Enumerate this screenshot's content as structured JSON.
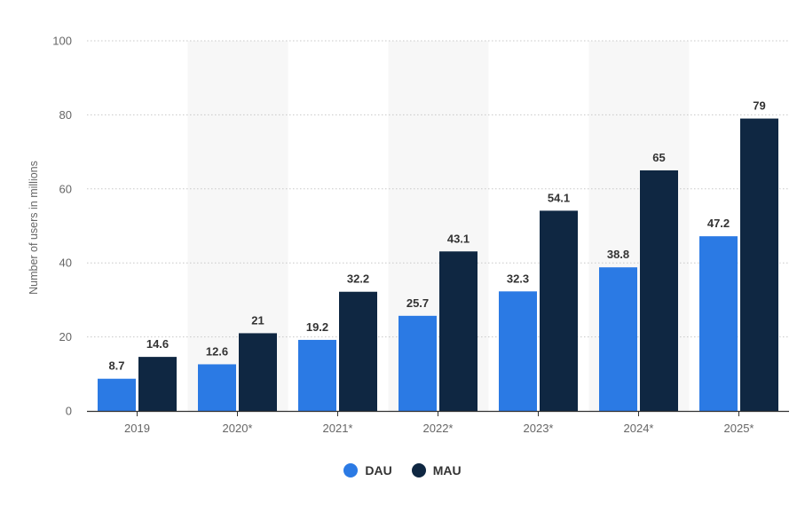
{
  "chart_data": {
    "type": "bar",
    "ylabel": "Number of users in millions",
    "xlabel": "",
    "ylim": [
      0,
      100
    ],
    "yticks": [
      0,
      20,
      40,
      60,
      80,
      100
    ],
    "grid": true,
    "legend_position": "bottom-center",
    "categories": [
      "2019",
      "2020*",
      "2021*",
      "2022*",
      "2023*",
      "2024*",
      "2025*"
    ],
    "series": [
      {
        "name": "DAU",
        "color": "#2b7ae4",
        "values": [
          8.7,
          12.6,
          19.2,
          25.7,
          32.3,
          38.8,
          47.2
        ],
        "labels": [
          "8.7",
          "12.6",
          "19.2",
          "25.7",
          "32.3",
          "38.8",
          "47.2"
        ]
      },
      {
        "name": "MAU",
        "color": "#0f2742",
        "values": [
          14.6,
          21,
          32.2,
          43.1,
          54.1,
          65,
          79
        ],
        "labels": [
          "14.6",
          "21",
          "32.2",
          "43.1",
          "54.1",
          "65",
          "79"
        ]
      }
    ]
  }
}
